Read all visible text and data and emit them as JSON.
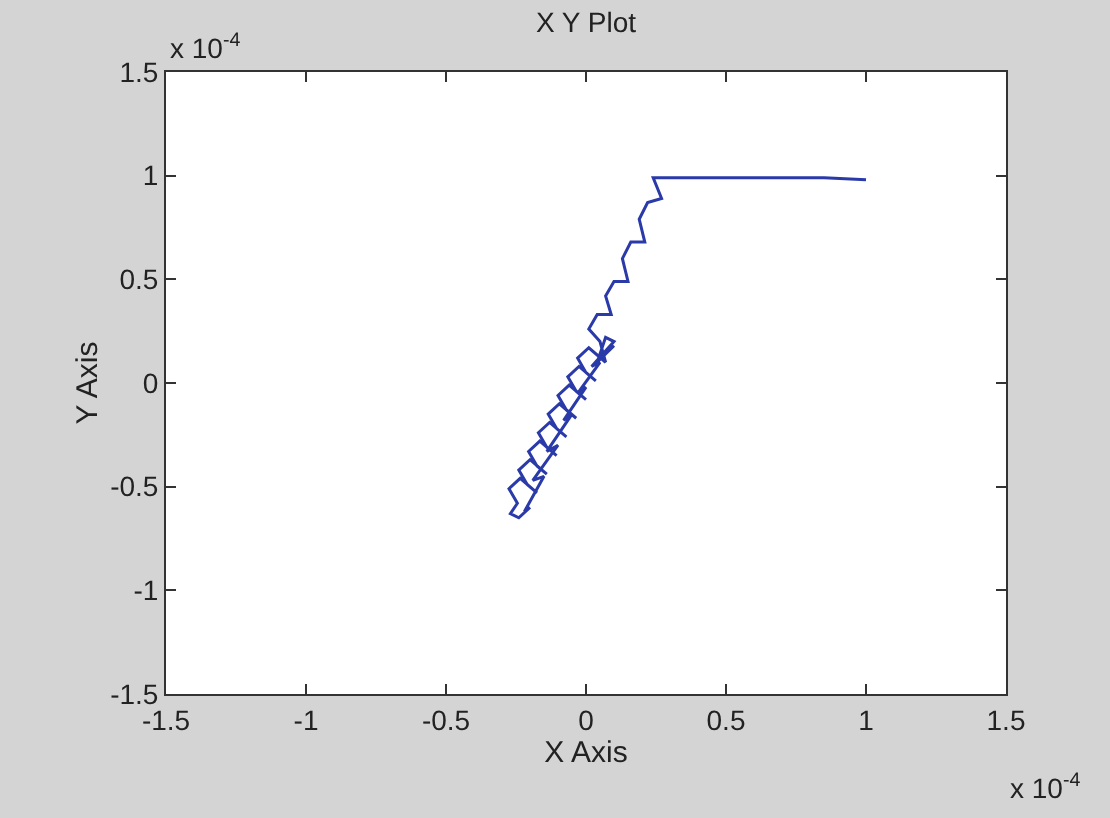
{
  "chart_data": {
    "type": "line",
    "title": "X Y Plot",
    "xlabel": "X Axis",
    "ylabel": "Y Axis",
    "annotations": [
      "x 10$^{-4}$",
      "x 10$^{-4}$"
    ],
    "xlim": [
      -1.5,
      1.5
    ],
    "xticks": [
      -1.5,
      -1,
      -0.5,
      0,
      0.5,
      1,
      1.5
    ],
    "ylim": [
      -1.5,
      1.5
    ],
    "yticks": [
      -1.5,
      -1,
      -0.5,
      0,
      0.5,
      1,
      1.5
    ],
    "grid": false,
    "marker": "none",
    "line_style": "solid",
    "series": [
      {
        "color": "#2a3aa8",
        "x": [
          1.0,
          0.85,
          0.24,
          0.27,
          0.22,
          0.19,
          0.21,
          0.16,
          0.13,
          0.15,
          0.1,
          0.07,
          0.09,
          0.04,
          0.01,
          0.05,
          0.07,
          0.01,
          -0.03,
          0.0,
          0.035,
          -0.025,
          -0.065,
          -0.035,
          0.0,
          -0.06,
          -0.1,
          -0.07,
          -0.035,
          -0.095,
          -0.135,
          -0.105,
          -0.07,
          -0.13,
          -0.17,
          -0.14,
          -0.105,
          -0.165,
          -0.205,
          -0.175,
          -0.14,
          -0.2,
          -0.24,
          -0.21,
          -0.175,
          -0.235,
          -0.275,
          -0.245,
          -0.27,
          -0.24,
          -0.2,
          -0.22,
          -0.15,
          -0.19,
          -0.1,
          -0.14,
          -0.05,
          -0.08,
          0.0,
          -0.03,
          0.05,
          0.02,
          0.1,
          0.07,
          0.04,
          0.1
        ],
        "values": [
          0.98,
          0.99,
          0.99,
          0.89,
          0.87,
          0.79,
          0.68,
          0.68,
          0.6,
          0.49,
          0.49,
          0.42,
          0.33,
          0.33,
          0.26,
          0.2,
          0.1,
          0.17,
          0.12,
          0.05,
          0.01,
          0.08,
          0.03,
          -0.04,
          -0.08,
          -0.01,
          -0.06,
          -0.13,
          -0.17,
          -0.1,
          -0.15,
          -0.22,
          -0.26,
          -0.19,
          -0.24,
          -0.31,
          -0.35,
          -0.28,
          -0.33,
          -0.4,
          -0.44,
          -0.37,
          -0.42,
          -0.49,
          -0.53,
          -0.46,
          -0.51,
          -0.58,
          -0.63,
          -0.65,
          -0.6,
          -0.62,
          -0.45,
          -0.47,
          -0.3,
          -0.33,
          -0.15,
          -0.18,
          -0.02,
          -0.05,
          0.1,
          0.08,
          0.2,
          0.22,
          0.1,
          0.18
        ]
      }
    ]
  }
}
